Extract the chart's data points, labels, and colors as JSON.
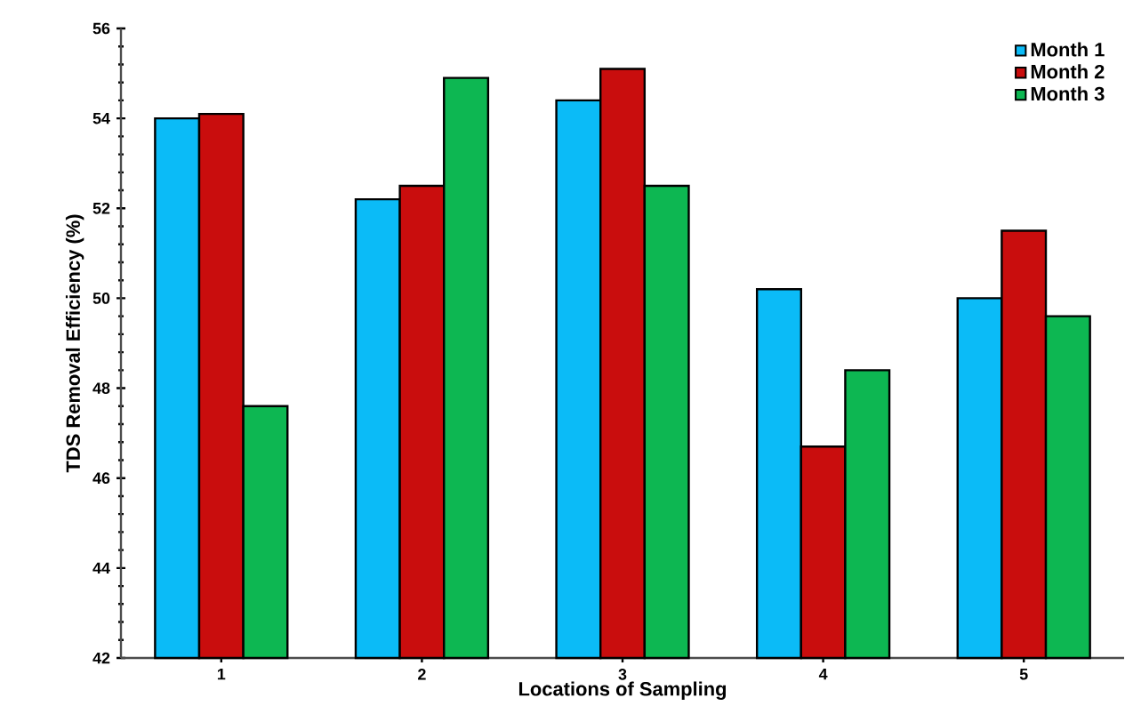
{
  "chart_data": {
    "type": "bar",
    "xlabel": "Locations of Sampling",
    "ylabel": "TDS Removal Efficiency (%)",
    "categories": [
      "1",
      "2",
      "3",
      "4",
      "5"
    ],
    "series": [
      {
        "name": "Month 1",
        "color": "#0bbbf7",
        "values": [
          54.0,
          52.2,
          54.4,
          50.2,
          50.0
        ]
      },
      {
        "name": "Month 2",
        "color": "#c90d0d",
        "values": [
          54.1,
          52.5,
          55.1,
          46.7,
          51.5
        ]
      },
      {
        "name": "Month 3",
        "color": "#0db752",
        "values": [
          47.6,
          54.9,
          52.5,
          48.4,
          49.6
        ]
      }
    ],
    "ylim": [
      42,
      56
    ],
    "yticks": [
      42,
      44,
      46,
      48,
      50,
      52,
      54,
      56
    ],
    "grid": false,
    "legend": "top right"
  }
}
